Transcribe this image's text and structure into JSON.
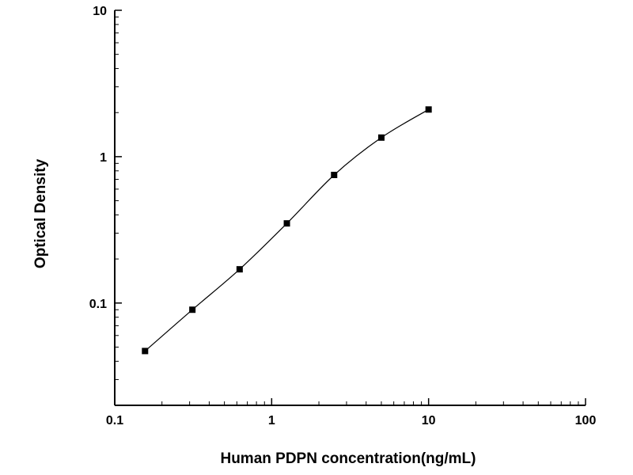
{
  "chart": {
    "xlabel": "Human PDPN concentration(ng/mL)",
    "ylabel": "Optical Density"
  },
  "chart_data": {
    "type": "scatter",
    "title": "",
    "xlabel": "Human PDPN concentration(ng/mL)",
    "ylabel": "Optical Density",
    "xscale": "log",
    "yscale": "log",
    "xlim": [
      0.1,
      100
    ],
    "ylim": [
      0.02,
      10
    ],
    "x": [
      0.156,
      0.3125,
      0.625,
      1.25,
      2.5,
      5,
      10
    ],
    "y": [
      0.047,
      0.09,
      0.17,
      0.35,
      0.75,
      1.35,
      2.1
    ],
    "x_major_ticks": [
      0.1,
      1,
      10,
      100
    ],
    "x_tick_labels": [
      "0.1",
      "1",
      "10",
      "100"
    ],
    "y_major_ticks": [
      0.1,
      1,
      10
    ],
    "y_tick_labels": [
      "0.1",
      "1",
      "10"
    ],
    "marker": "square",
    "marker_color": "#000000",
    "line_color": "#000000",
    "axis_color": "#000000",
    "grid": false,
    "legend": false
  }
}
